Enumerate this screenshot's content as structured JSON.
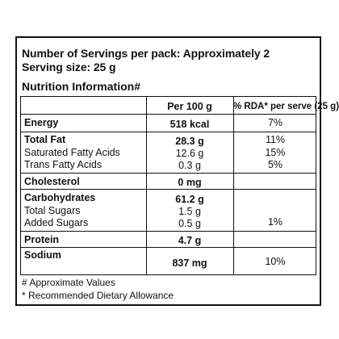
{
  "header": {
    "servings_line": "Number of Servings per pack: Approximately 2",
    "serving_size_line": "Serving size: 25 g",
    "section_title": "Nutrition Information#"
  },
  "table": {
    "columns": [
      "",
      "Per 100 g",
      "% RDA* per serve (25 g)"
    ],
    "rows": [
      {
        "name": "Energy",
        "per100": "518 kcal",
        "rda": "7%"
      },
      {
        "name": "Total Fat",
        "per100": "28.3 g",
        "rda": "11%"
      },
      {
        "name": "Saturated Fatty Acids",
        "per100": "12.6 g",
        "rda": "15%"
      },
      {
        "name": "Trans Fatty Acids",
        "per100": "0.3 g",
        "rda": "5%"
      },
      {
        "name": "Cholesterol",
        "per100": "0 mg",
        "rda": ""
      },
      {
        "name": "Carbohydrates",
        "per100": "61.2 g",
        "rda": ""
      },
      {
        "name": "Total Sugars",
        "per100": "1.5 g",
        "rda": ""
      },
      {
        "name": "Added Sugars",
        "per100": "0.5 g",
        "rda": "1%"
      },
      {
        "name": "Protein",
        "per100": "4.7 g",
        "rda": ""
      },
      {
        "name": "Sodium",
        "per100": "837 mg",
        "rda": "10%"
      }
    ]
  },
  "footnotes": {
    "approx": "# Approximate Values",
    "rda": "* Recommended Dietary Allowance"
  }
}
